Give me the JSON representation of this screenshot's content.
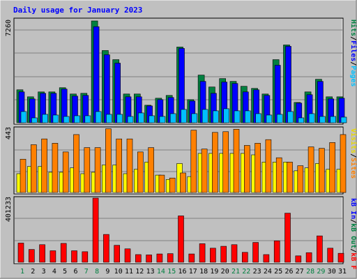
{
  "title": "Daily usage for January 2023",
  "colors": {
    "background": "#c0c0c0",
    "title": "#0000ff",
    "hits": "#008040",
    "files": "#0000ff",
    "pages": "#00c0ff",
    "visits": "#ffff00",
    "sites": "#ff8000",
    "kb_in": "#0000ff",
    "kb_out": "#ff0000",
    "weekend_day": "#008040"
  },
  "legend_top": {
    "pages": "Pages",
    "files": "Files",
    "hits": "Hits",
    "sep": "/"
  },
  "legend_mid": {
    "visits": "Visits",
    "sites": "Sites",
    "sep": "/"
  },
  "legend_bot": {
    "kb_f": "kB F",
    "kb_out": "kB Out",
    "kb_in": "kB In",
    "sep": "/"
  },
  "chart_data": [
    {
      "type": "bar",
      "title": "Daily usage for January 2023",
      "ymax_label": "7260",
      "ylim": [
        0,
        7260
      ],
      "grid": true,
      "categories": [
        "1",
        "2",
        "3",
        "4",
        "5",
        "6",
        "7",
        "8",
        "9",
        "10",
        "11",
        "12",
        "13",
        "14",
        "15",
        "16",
        "17",
        "18",
        "19",
        "20",
        "21",
        "22",
        "23",
        "24",
        "25",
        "26",
        "27",
        "28",
        "29",
        "30",
        "31"
      ],
      "weekend_days": [
        "1",
        "7",
        "8",
        "14",
        "15",
        "21",
        "22",
        "28",
        "29"
      ],
      "series": [
        {
          "name": "Hits",
          "values": [
            2350,
            1850,
            2200,
            2200,
            2500,
            2050,
            2100,
            7260,
            5150,
            4500,
            2050,
            2050,
            1250,
            1750,
            1950,
            5400,
            1650,
            3400,
            2550,
            3150,
            2950,
            2600,
            2450,
            2050,
            4500,
            5550,
            1450,
            2200,
            3100,
            1850,
            1850
          ]
        },
        {
          "name": "Files",
          "values": [
            2200,
            1700,
            2100,
            2100,
            2400,
            1900,
            1950,
            6850,
            4850,
            4250,
            1850,
            1850,
            1200,
            1650,
            1800,
            5300,
            1550,
            2950,
            2100,
            2900,
            2800,
            2200,
            2350,
            1950,
            4100,
            5450,
            1400,
            2000,
            2950,
            1700,
            1750
          ]
        },
        {
          "name": "Pages",
          "values": [
            800,
            350,
            600,
            550,
            450,
            500,
            500,
            800,
            600,
            600,
            450,
            700,
            500,
            450,
            650,
            950,
            650,
            950,
            850,
            1000,
            850,
            850,
            650,
            550,
            600,
            800,
            350,
            650,
            450,
            450,
            400
          ]
        }
      ]
    },
    {
      "type": "bar",
      "ymax_label": "443",
      "ylim": [
        0,
        443
      ],
      "grid": true,
      "categories": [
        "1",
        "2",
        "3",
        "4",
        "5",
        "6",
        "7",
        "8",
        "9",
        "10",
        "11",
        "12",
        "13",
        "14",
        "15",
        "16",
        "17",
        "18",
        "19",
        "20",
        "21",
        "22",
        "23",
        "24",
        "25",
        "26",
        "27",
        "28",
        "29",
        "30",
        "31"
      ],
      "series": [
        {
          "name": "Sites",
          "values": [
            230,
            330,
            370,
            340,
            280,
            400,
            310,
            310,
            440,
            370,
            370,
            280,
            310,
            120,
            100,
            135,
            430,
            300,
            415,
            420,
            437,
            325,
            340,
            365,
            240,
            210,
            185,
            315,
            305,
            345,
            400
          ]
        },
        {
          "name": "Visits",
          "values": [
            130,
            180,
            180,
            140,
            140,
            170,
            130,
            140,
            190,
            190,
            130,
            160,
            210,
            120,
            90,
            200,
            110,
            270,
            270,
            270,
            270,
            270,
            260,
            210,
            210,
            210,
            150,
            170,
            200,
            160,
            160
          ]
        }
      ]
    },
    {
      "type": "bar",
      "ymax_label": "401233",
      "ylim": [
        0,
        401233
      ],
      "grid": true,
      "categories": [
        "1",
        "2",
        "3",
        "4",
        "5",
        "6",
        "7",
        "8",
        "9",
        "10",
        "11",
        "12",
        "13",
        "14",
        "15",
        "16",
        "17",
        "18",
        "19",
        "20",
        "21",
        "22",
        "23",
        "24",
        "25",
        "26",
        "27",
        "28",
        "29",
        "30",
        "31"
      ],
      "series": [
        {
          "name": "kB In",
          "values": [
            0,
            0,
            0,
            0,
            0,
            0,
            0,
            0,
            0,
            0,
            0,
            0,
            0,
            0,
            0,
            0,
            0,
            0,
            0,
            0,
            0,
            0,
            0,
            0,
            0,
            0,
            0,
            0,
            0,
            0,
            0
          ]
        },
        {
          "name": "kB Out",
          "values": [
            120000,
            80000,
            110000,
            72000,
            118000,
            72000,
            66000,
            401233,
            174000,
            106000,
            84000,
            48000,
            46000,
            52000,
            54000,
            290000,
            52000,
            116000,
            88000,
            100000,
            110000,
            62000,
            124000,
            48000,
            134000,
            307000,
            40000,
            60000,
            165000,
            88000,
            56000
          ]
        }
      ]
    }
  ]
}
